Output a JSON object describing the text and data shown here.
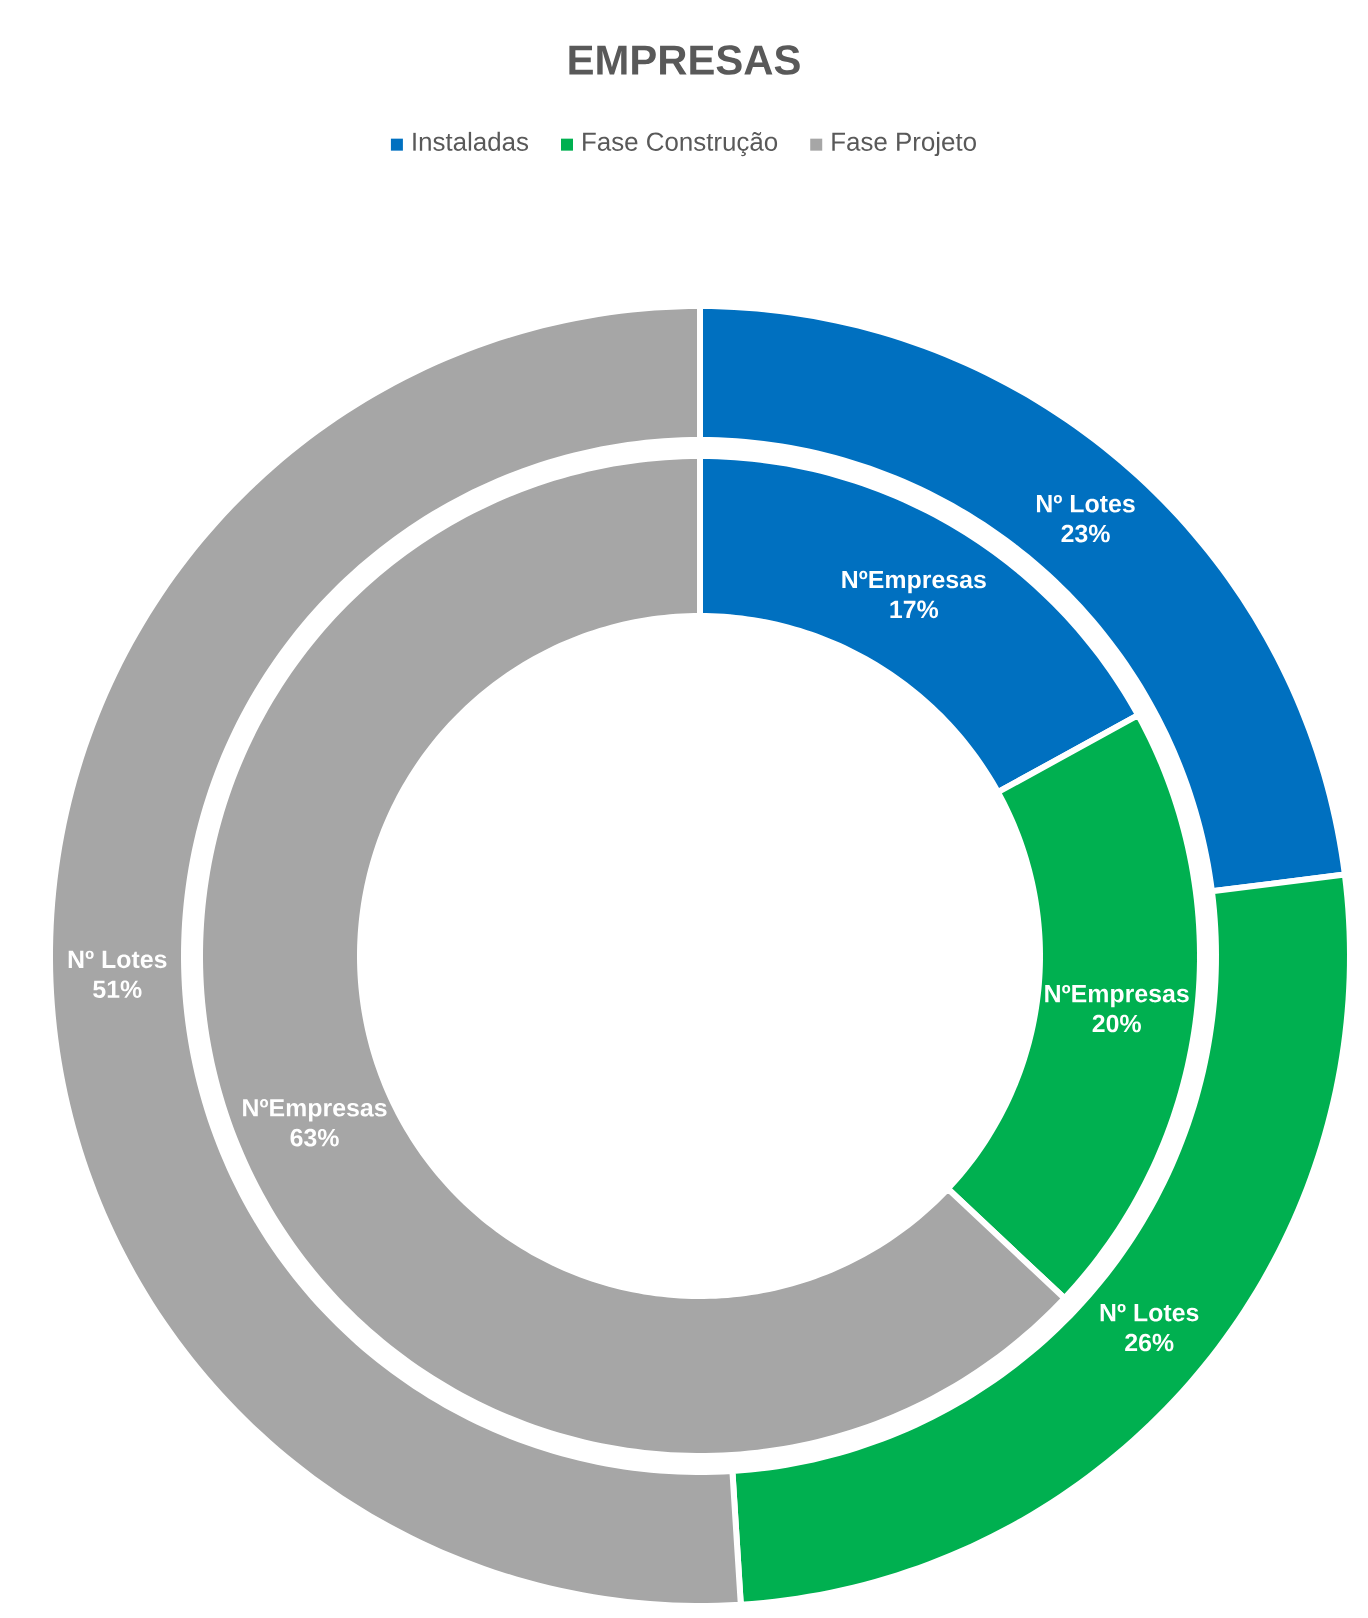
{
  "chart_data": {
    "type": "donut",
    "title": "EMPRESAS",
    "legend": "top",
    "categories": [
      "Instaladas",
      "Fase Construção",
      "Fase Projeto"
    ],
    "colors": [
      "#0070c0",
      "#00b050",
      "#a6a6a6"
    ],
    "series": [
      {
        "name": "NºEmpresas",
        "values": [
          17,
          20,
          63
        ],
        "value_labels": [
          "17%",
          "20%",
          "63%"
        ]
      },
      {
        "name": "Nº Lotes",
        "values": [
          23,
          26,
          51
        ],
        "value_labels": [
          "23%",
          "26%",
          "51%"
        ]
      }
    ]
  }
}
